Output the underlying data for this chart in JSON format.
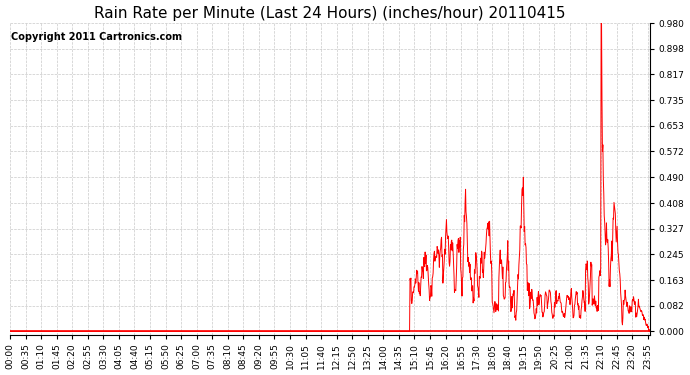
{
  "title": "Rain Rate per Minute (Last 24 Hours) (inches/hour) 20110415",
  "copyright": "Copyright 2011 Cartronics.com",
  "background_color": "#ffffff",
  "plot_bg_color": "#ffffff",
  "line_color": "#ff0000",
  "yticks": [
    0.0,
    0.082,
    0.163,
    0.245,
    0.327,
    0.408,
    0.49,
    0.572,
    0.653,
    0.735,
    0.817,
    0.898,
    0.98
  ],
  "ymin": -0.01,
  "ymax": 0.98,
  "title_fontsize": 11,
  "copyright_fontsize": 7,
  "tick_fontsize": 6.5,
  "grid_color": "#bbbbbb",
  "baseline_y": -0.008
}
